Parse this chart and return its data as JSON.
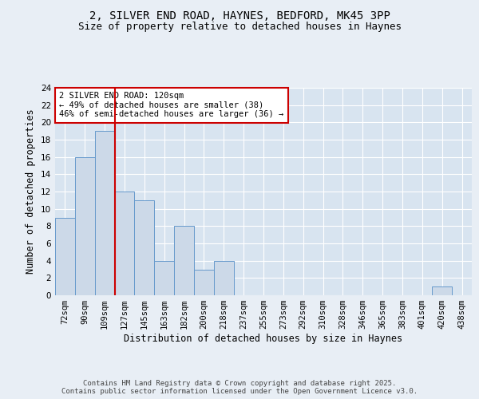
{
  "title_line1": "2, SILVER END ROAD, HAYNES, BEDFORD, MK45 3PP",
  "title_line2": "Size of property relative to detached houses in Haynes",
  "xlabel": "Distribution of detached houses by size in Haynes",
  "ylabel": "Number of detached properties",
  "categories": [
    "72sqm",
    "90sqm",
    "109sqm",
    "127sqm",
    "145sqm",
    "163sqm",
    "182sqm",
    "200sqm",
    "218sqm",
    "237sqm",
    "255sqm",
    "273sqm",
    "292sqm",
    "310sqm",
    "328sqm",
    "346sqm",
    "365sqm",
    "383sqm",
    "401sqm",
    "420sqm",
    "438sqm"
  ],
  "values": [
    9,
    16,
    19,
    12,
    11,
    4,
    8,
    3,
    4,
    0,
    0,
    0,
    0,
    0,
    0,
    0,
    0,
    0,
    0,
    1,
    0
  ],
  "bar_color": "#ccd9e8",
  "bar_edgecolor": "#6699cc",
  "background_color": "#e8eef5",
  "plot_bg_color": "#d8e4f0",
  "grid_color": "#ffffff",
  "vline_x": 2.5,
  "vline_color": "#cc0000",
  "annotation_text": "2 SILVER END ROAD: 120sqm\n← 49% of detached houses are smaller (38)\n46% of semi-detached houses are larger (36) →",
  "annotation_box_edgecolor": "#cc0000",
  "annotation_box_facecolor": "#ffffff",
  "ylim": [
    0,
    24
  ],
  "yticks": [
    0,
    2,
    4,
    6,
    8,
    10,
    12,
    14,
    16,
    18,
    20,
    22,
    24
  ],
  "footer_text": "Contains HM Land Registry data © Crown copyright and database right 2025.\nContains public sector information licensed under the Open Government Licence v3.0.",
  "title_fontsize": 10,
  "subtitle_fontsize": 9,
  "axis_label_fontsize": 8.5,
  "tick_fontsize": 7.5,
  "annotation_fontsize": 7.5,
  "footer_fontsize": 6.5
}
